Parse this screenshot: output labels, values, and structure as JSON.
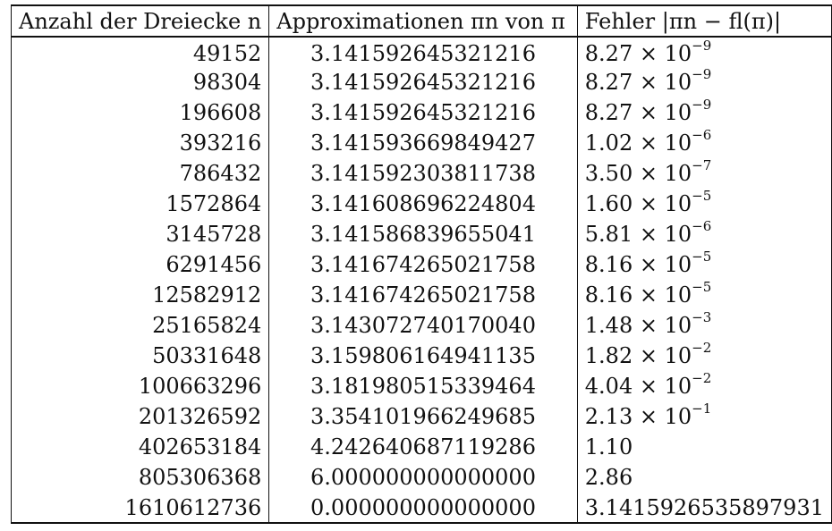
{
  "table": {
    "headers": [
      "Anzahl der Dreiecke n",
      "Approximationen πn von π",
      "Fehler |πn − fl(π)|"
    ],
    "rows": [
      {
        "n": "49152",
        "approx": "3.141592645321216",
        "mant": "8.27 × 10",
        "exp": "−9"
      },
      {
        "n": "98304",
        "approx": "3.141592645321216",
        "mant": "8.27 × 10",
        "exp": "−9"
      },
      {
        "n": "196608",
        "approx": "3.141592645321216",
        "mant": "8.27 × 10",
        "exp": "−9"
      },
      {
        "n": "393216",
        "approx": "3.141593669849427",
        "mant": "1.02 × 10",
        "exp": "−6"
      },
      {
        "n": "786432",
        "approx": "3.141592303811738",
        "mant": "3.50 × 10",
        "exp": "−7"
      },
      {
        "n": "1572864",
        "approx": "3.141608696224804",
        "mant": "1.60 × 10",
        "exp": "−5"
      },
      {
        "n": "3145728",
        "approx": "3.141586839655041",
        "mant": "5.81 × 10",
        "exp": "−6"
      },
      {
        "n": "6291456",
        "approx": "3.141674265021758",
        "mant": "8.16 × 10",
        "exp": "−5"
      },
      {
        "n": "12582912",
        "approx": "3.141674265021758",
        "mant": "8.16 × 10",
        "exp": "−5"
      },
      {
        "n": "25165824",
        "approx": "3.143072740170040",
        "mant": "1.48 × 10",
        "exp": "−3"
      },
      {
        "n": "50331648",
        "approx": "3.159806164941135",
        "mant": "1.82 × 10",
        "exp": "−2"
      },
      {
        "n": "100663296",
        "approx": "3.181980515339464",
        "mant": "4.04 × 10",
        "exp": "−2"
      },
      {
        "n": "201326592",
        "approx": "3.354101966249685",
        "mant": "2.13 × 10",
        "exp": "−1"
      },
      {
        "n": "402653184",
        "approx": "4.242640687119286",
        "mant": "1.10",
        "exp": ""
      },
      {
        "n": "805306368",
        "approx": "6.000000000000000",
        "mant": "2.86",
        "exp": ""
      },
      {
        "n": "1610612736",
        "approx": "0.000000000000000",
        "mant": "3.1415926535897931",
        "exp": ""
      }
    ]
  }
}
